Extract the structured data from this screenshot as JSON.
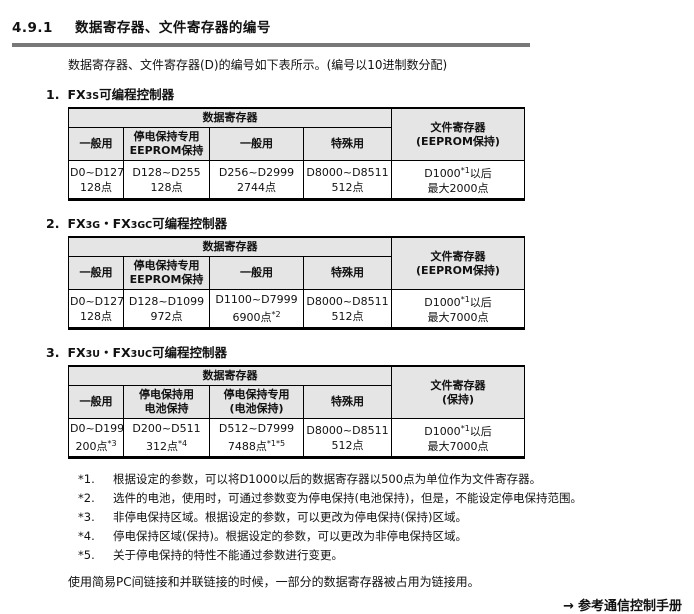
{
  "page": {
    "section_number": "4.9.1",
    "section_title": "数据寄存器、文件寄存器的编号",
    "intro": "数据寄存器、文件寄存器(D)的编号如下表所示。(编号以10进制数分配)"
  },
  "colors": {
    "header_bg": "#e5e5e5",
    "rule": "#787878",
    "border": "#000000",
    "text": "#111111"
  },
  "tables": [
    {
      "index": "1.",
      "title_segments": [
        [
          {
            "t": "FX"
          },
          {
            "sm": "3S"
          },
          {
            "t": "可编程控制器"
          }
        ]
      ],
      "group_header": "数据寄存器",
      "file_header": "文件寄存器\n(EEPROM保持)",
      "col_headers": [
        "一般用",
        "停电保持专用\nEEPROM保持",
        "一般用",
        "特殊用"
      ],
      "cells": [
        [
          [
            {
              "t": "D0~D127"
            }
          ],
          [
            {
              "t": "128点"
            }
          ]
        ],
        [
          [
            {
              "t": "D128~D255"
            }
          ],
          [
            {
              "t": "128点"
            }
          ]
        ],
        [
          [
            {
              "t": "D256~D2999"
            }
          ],
          [
            {
              "t": "2744点"
            }
          ]
        ],
        [
          [
            {
              "t": "D8000~D8511"
            }
          ],
          [
            {
              "t": "512点"
            }
          ]
        ],
        [
          [
            {
              "t": "D1000"
            },
            {
              "sup": "*1"
            },
            {
              "t": "以后"
            }
          ],
          [
            {
              "t": "最大2000点"
            }
          ]
        ]
      ]
    },
    {
      "index": "2.",
      "title_segments": [
        [
          {
            "t": "FX"
          },
          {
            "sm": "3G"
          },
          {
            "t": "・FX"
          },
          {
            "sm": "3GC"
          },
          {
            "t": "可编程控制器"
          }
        ]
      ],
      "group_header": "数据寄存器",
      "file_header": "文件寄存器\n(EEPROM保持)",
      "col_headers": [
        "一般用",
        "停电保持专用\nEEPROM保持",
        "一般用",
        "特殊用"
      ],
      "cells": [
        [
          [
            {
              "t": "D0~D127"
            }
          ],
          [
            {
              "t": "128点"
            }
          ]
        ],
        [
          [
            {
              "t": "D128~D1099"
            }
          ],
          [
            {
              "t": "972点"
            }
          ]
        ],
        [
          [
            {
              "t": "D1100~D7999"
            }
          ],
          [
            {
              "t": "6900点"
            },
            {
              "sup": "*2"
            }
          ]
        ],
        [
          [
            {
              "t": "D8000~D8511"
            }
          ],
          [
            {
              "t": "512点"
            }
          ]
        ],
        [
          [
            {
              "t": "D1000"
            },
            {
              "sup": "*1"
            },
            {
              "t": "以后"
            }
          ],
          [
            {
              "t": "最大7000点"
            }
          ]
        ]
      ]
    },
    {
      "index": "3.",
      "title_segments": [
        [
          {
            "t": "FX"
          },
          {
            "sm": "3U"
          },
          {
            "t": "・FX"
          },
          {
            "sm": "3UC"
          },
          {
            "t": "可编程控制器"
          }
        ]
      ],
      "group_header": "数据寄存器",
      "file_header": "文件寄存器\n(保持)",
      "col_headers": [
        "一般用",
        "停电保持用\n电池保持",
        "停电保持专用\n(电池保持)",
        "特殊用"
      ],
      "cells": [
        [
          [
            {
              "t": "D0~D199"
            }
          ],
          [
            {
              "t": "200点"
            },
            {
              "sup": "*3"
            }
          ]
        ],
        [
          [
            {
              "t": "D200~D511"
            }
          ],
          [
            {
              "t": "312点"
            },
            {
              "sup": "*4"
            }
          ]
        ],
        [
          [
            {
              "t": "D512~D7999"
            }
          ],
          [
            {
              "t": "7488点"
            },
            {
              "sup": "*1*5"
            }
          ]
        ],
        [
          [
            {
              "t": "D8000~D8511"
            }
          ],
          [
            {
              "t": "512点"
            }
          ]
        ],
        [
          [
            {
              "t": "D1000"
            },
            {
              "sup": "*1"
            },
            {
              "t": "以后"
            }
          ],
          [
            {
              "t": "最大7000点"
            }
          ]
        ]
      ]
    }
  ],
  "footnotes": [
    {
      "marker": "*1.",
      "text": "根据设定的参数，可以将D1000以后的数据寄存器以500点为单位作为文件寄存器。"
    },
    {
      "marker": "*2.",
      "text": "选件的电池，使用时，可通过参数变为停电保持(电池保持)，但是，不能设定停电保持范围。"
    },
    {
      "marker": "*3.",
      "text": "非停电保持区域。根据设定的参数，可以更改为停电保持(保持)区域。"
    },
    {
      "marker": "*4.",
      "text": "停电保持区域(保持)。根据设定的参数，可以更改为非停电保持区域。"
    },
    {
      "marker": "*5.",
      "text": "关于停电保持的特性不能通过参数进行变更。"
    }
  ],
  "note": "使用简易PC间链接和并联链接的时候，一部分的数据寄存器被占用为链接用。",
  "reference": {
    "arrow": "→",
    "text": "参考通信控制手册"
  }
}
